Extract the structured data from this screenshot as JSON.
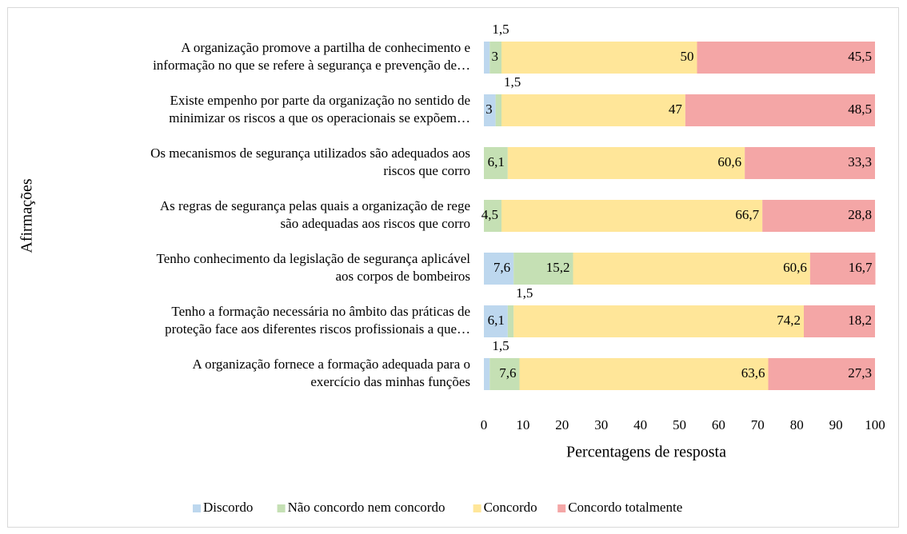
{
  "chart_data": {
    "type": "stacked-barh",
    "x_label": "Percentagens de resposta",
    "y_label": "Afirmações",
    "categories": [
      [
        "A organização promove a partilha de conhecimento e",
        "informação no que se refere à segurança e prevenção de…"
      ],
      [
        "Existe empenho por parte da organização no sentido de",
        "minimizar os riscos a que os operacionais se expõem…"
      ],
      [
        "Os mecanismos de segurança utilizados são adequados aos",
        "riscos que corro"
      ],
      [
        "As regras de segurança pelas quais a organização de rege",
        "são adequadas aos riscos que corro"
      ],
      [
        "Tenho conhecimento da legislação de segurança aplicável",
        "aos corpos de bombeiros"
      ],
      [
        "Tenho a formação necessária no âmbito das práticas de",
        "proteção face aos diferentes riscos profissionais a que…"
      ],
      [
        "A organização fornece a formação adequada para o",
        "exercício das minhas funções"
      ]
    ],
    "series": [
      {
        "name": "Discordo",
        "color": "#bdd7ee",
        "values": [
          1.5,
          3,
          null,
          null,
          7.6,
          6.1,
          1.5
        ],
        "value_labels": [
          "1,5",
          "3",
          null,
          null,
          "7,6",
          "6,1",
          "1,5"
        ]
      },
      {
        "name": "Não concordo nem concordo",
        "color": "#c5e0b4",
        "values": [
          3,
          1.5,
          6.1,
          4.5,
          15.2,
          1.5,
          7.6
        ],
        "value_labels": [
          "3",
          "1,5",
          "6,1",
          "4,5",
          "15,2",
          "1,5",
          "7,6"
        ]
      },
      {
        "name": "Concordo",
        "color": "#ffe699",
        "values": [
          50,
          47,
          60.6,
          66.7,
          60.6,
          74.2,
          63.6
        ],
        "value_labels": [
          "50",
          "47",
          "60,6",
          "66,7",
          "60,6",
          "74,2",
          "63,6"
        ]
      },
      {
        "name": "Concordo totalmente",
        "color": "#f4a6a6",
        "values": [
          45.5,
          48.5,
          33.3,
          28.8,
          16.7,
          18.2,
          27.3
        ],
        "value_labels": [
          "45,5",
          "48,5",
          "33,3",
          "28,8",
          "16,7",
          "18,2",
          "27,3"
        ]
      }
    ],
    "xlim": [
      0,
      100
    ],
    "xticks": [
      0,
      10,
      20,
      30,
      40,
      50,
      60,
      70,
      80,
      90,
      100
    ],
    "legend": "bottom"
  }
}
